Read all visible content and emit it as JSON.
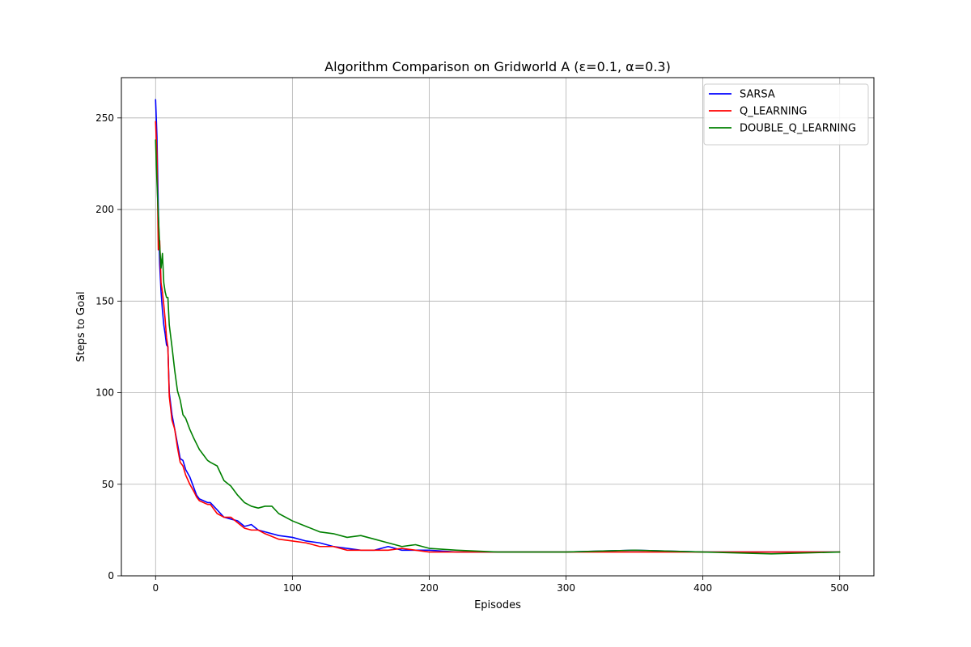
{
  "chart_data": {
    "type": "line",
    "title": "Algorithm Comparison on Gridworld A (ε=0.1, α=0.3)",
    "xlabel": "Episodes",
    "ylabel": "Steps to Goal",
    "xlim": [
      -25,
      525
    ],
    "ylim": [
      0,
      272
    ],
    "xticks": [
      0,
      100,
      200,
      300,
      400,
      500
    ],
    "yticks": [
      0,
      50,
      100,
      150,
      200,
      250
    ],
    "grid": true,
    "legend": "top-right",
    "series": [
      {
        "name": "SARSA",
        "color": "#0000ff",
        "x": [
          0,
          1,
          2,
          3,
          4,
          5,
          6,
          7,
          8,
          9,
          10,
          12,
          14,
          16,
          18,
          20,
          22,
          25,
          28,
          30,
          32,
          35,
          38,
          40,
          45,
          50,
          55,
          60,
          65,
          70,
          75,
          80,
          90,
          100,
          110,
          120,
          130,
          140,
          150,
          160,
          170,
          180,
          190,
          200,
          220,
          250,
          300,
          350,
          400,
          450,
          500
        ],
        "y": [
          260,
          240,
          200,
          170,
          155,
          145,
          137,
          132,
          126,
          125,
          100,
          88,
          80,
          72,
          64,
          63,
          58,
          54,
          48,
          44,
          42,
          41,
          40,
          40,
          36,
          32,
          31,
          30,
          27,
          28,
          25,
          24,
          22,
          21,
          19,
          18,
          16,
          15,
          14,
          14,
          16,
          14,
          14,
          14,
          13,
          13,
          13,
          14,
          13,
          13,
          13
        ]
      },
      {
        "name": "Q_LEARNING",
        "color": "#ff0000",
        "x": [
          0,
          1,
          2,
          3,
          4,
          5,
          6,
          7,
          8,
          9,
          10,
          12,
          14,
          16,
          18,
          20,
          22,
          25,
          28,
          30,
          32,
          35,
          38,
          40,
          45,
          50,
          55,
          60,
          65,
          70,
          75,
          80,
          90,
          100,
          110,
          120,
          130,
          140,
          150,
          160,
          170,
          180,
          190,
          200,
          220,
          250,
          300,
          350,
          400,
          450,
          500
        ],
        "y": [
          248,
          230,
          178,
          183,
          160,
          155,
          148,
          140,
          130,
          125,
          98,
          85,
          80,
          70,
          62,
          60,
          55,
          50,
          46,
          43,
          41,
          40,
          39,
          39,
          34,
          32,
          32,
          29,
          26,
          25,
          25,
          23,
          20,
          19,
          18,
          16,
          16,
          14,
          14,
          14,
          14,
          15,
          14,
          13,
          13,
          13,
          13,
          13,
          13,
          13,
          13
        ]
      },
      {
        "name": "DOUBLE_Q_LEARNING",
        "color": "#008000",
        "x": [
          0,
          1,
          2,
          3,
          4,
          5,
          6,
          7,
          8,
          9,
          10,
          12,
          14,
          16,
          18,
          20,
          22,
          25,
          28,
          30,
          32,
          35,
          38,
          40,
          45,
          50,
          55,
          60,
          65,
          70,
          75,
          80,
          85,
          90,
          100,
          110,
          120,
          130,
          140,
          150,
          160,
          170,
          180,
          190,
          200,
          220,
          250,
          300,
          350,
          400,
          450,
          500
        ],
        "y": [
          238,
          215,
          197,
          180,
          168,
          176,
          160,
          155,
          152,
          152,
          137,
          125,
          112,
          101,
          96,
          88,
          86,
          80,
          75,
          72,
          69,
          66,
          63,
          62,
          60,
          52,
          49,
          44,
          40,
          38,
          37,
          38,
          38,
          34,
          30,
          27,
          24,
          23,
          21,
          22,
          20,
          18,
          16,
          17,
          15,
          14,
          13,
          13,
          14,
          13,
          12,
          13
        ]
      }
    ]
  }
}
